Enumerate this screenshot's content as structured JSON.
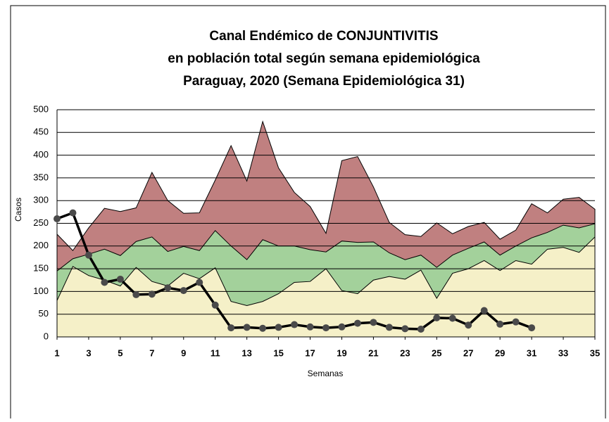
{
  "chart_data": {
    "type": "endemic-channel",
    "title": [
      "Canal Endémico de CONJUNTIVITIS",
      "en población total según semana epidemiológica",
      "Paraguay, 2020 (Semana  Epidemiológica 31)"
    ],
    "x_label": "Semanas",
    "y_label": "Casos",
    "x": [
      1,
      2,
      3,
      4,
      5,
      6,
      7,
      8,
      9,
      10,
      11,
      12,
      13,
      14,
      15,
      16,
      17,
      18,
      19,
      20,
      21,
      22,
      23,
      24,
      25,
      26,
      27,
      28,
      29,
      30,
      31,
      32,
      33,
      34,
      35
    ],
    "xlim": [
      1,
      35
    ],
    "xticks": [
      1,
      3,
      5,
      7,
      9,
      11,
      13,
      15,
      17,
      19,
      21,
      23,
      25,
      27,
      29,
      31,
      33,
      35
    ],
    "ylim": [
      0,
      500
    ],
    "yticks": [
      0,
      50,
      100,
      150,
      200,
      250,
      300,
      350,
      400,
      450,
      500
    ],
    "grid": true,
    "areas": [
      {
        "color": "#c08080",
        "values": [
          226,
          190,
          240,
          283,
          276,
          284,
          362,
          300,
          272,
          273,
          345,
          421,
          343,
          474,
          372,
          318,
          287,
          228,
          388,
          397,
          330,
          252,
          225,
          221,
          251,
          227,
          243,
          252,
          215,
          235,
          293,
          273,
          303,
          307,
          281
        ]
      },
      {
        "color": "#a3d19b",
        "values": [
          145,
          172,
          182,
          193,
          179,
          210,
          220,
          188,
          199,
          190,
          234,
          200,
          170,
          214,
          200,
          200,
          192,
          187,
          211,
          208,
          209,
          185,
          170,
          180,
          153,
          180,
          195,
          209,
          180,
          200,
          218,
          230,
          246,
          240,
          249
        ]
      },
      {
        "color": "#f5f0c8",
        "values": [
          80,
          155,
          135,
          125,
          112,
          153,
          122,
          112,
          140,
          128,
          152,
          78,
          69,
          78,
          95,
          120,
          122,
          150,
          102,
          95,
          125,
          133,
          127,
          147,
          85,
          140,
          150,
          168,
          146,
          168,
          160,
          193,
          197,
          186,
          220
        ]
      }
    ],
    "line": {
      "color": "#000000",
      "marker_color": "#4a4a4a",
      "values": [
        260,
        273,
        180,
        120,
        127,
        93,
        94,
        108,
        102,
        120,
        70,
        20,
        21,
        19,
        21,
        27,
        22,
        20,
        22,
        30,
        32,
        21,
        18,
        17,
        42,
        41,
        26,
        58,
        28,
        33,
        20,
        null,
        null,
        null,
        null
      ]
    }
  }
}
